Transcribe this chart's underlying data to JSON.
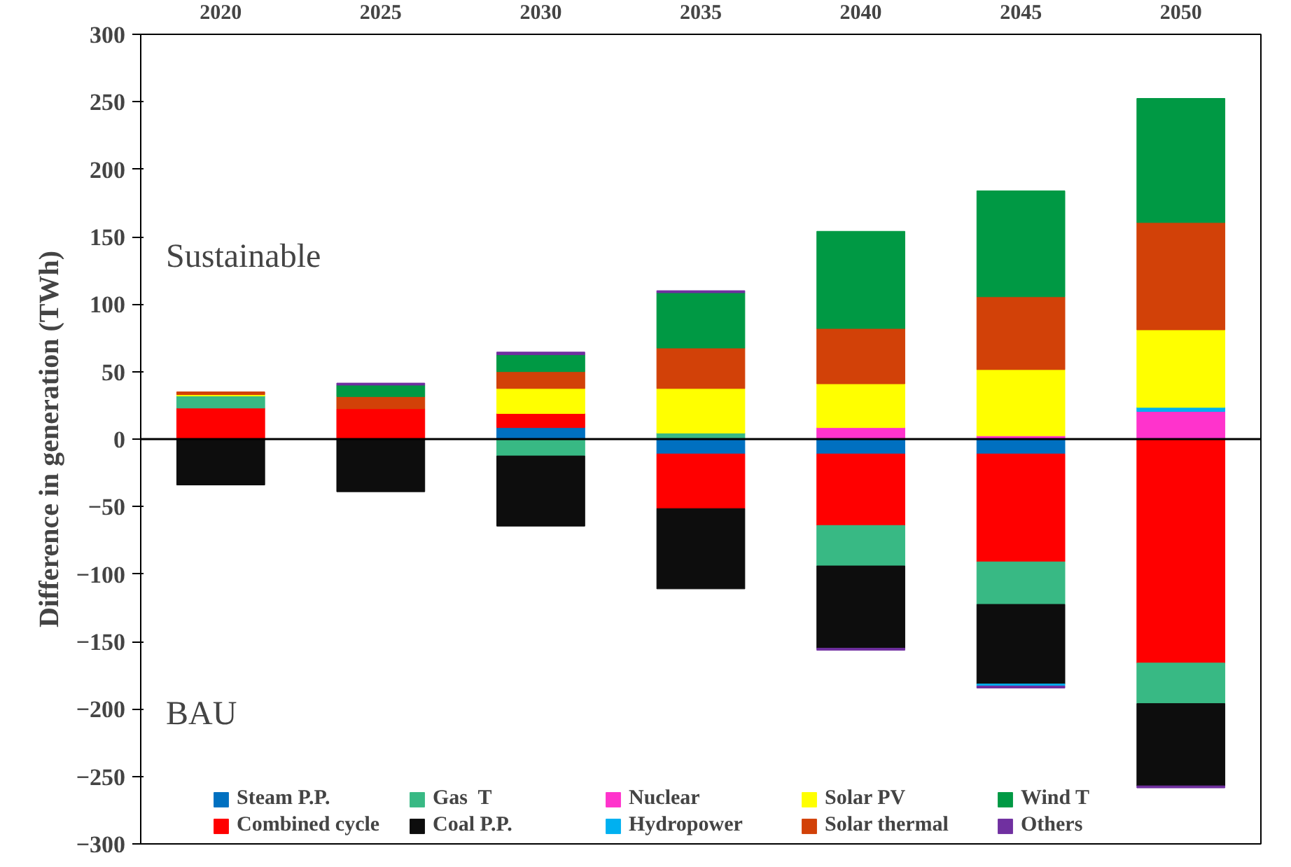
{
  "chart_data": {
    "type": "bar",
    "stacked": true,
    "categories": [
      "2020",
      "2025",
      "2030",
      "2035",
      "2040",
      "2045",
      "2050"
    ],
    "ylabel": "Difference in generation (TWh)",
    "annotations": [
      "Sustainable",
      "BAU"
    ],
    "ylim": [
      -300,
      300
    ],
    "yticks": [
      -300,
      -250,
      -200,
      -150,
      -100,
      -50,
      0,
      50,
      100,
      150,
      200,
      250,
      300
    ],
    "grid": false,
    "legend": "bottom",
    "ref_lines": [
      {
        "axis": "y",
        "value": 0,
        "color": "#000000"
      }
    ],
    "series": [
      {
        "name": "Steam P.P.",
        "color": "#0070c0",
        "values": [
          null,
          null,
          8.5,
          -11,
          -11,
          -11,
          null
        ]
      },
      {
        "name": "Combined cycle",
        "color": "#ff0000",
        "values": [
          23,
          22.5,
          10.5,
          -40.5,
          -53,
          -80,
          -166
        ]
      },
      {
        "name": "Gas  T",
        "color": "#38b984",
        "values": [
          9,
          null,
          -12.5,
          4.5,
          -30,
          -31.5,
          -30
        ]
      },
      {
        "name": "Coal P.P.",
        "color": "#0d0d0d",
        "values": [
          -34,
          -39,
          -52,
          -59.5,
          -61,
          -59,
          -61
        ]
      },
      {
        "name": "Nuclear",
        "color": "#ff33cc",
        "values": [
          null,
          null,
          null,
          null,
          8.5,
          2.5,
          20.5
        ]
      },
      {
        "name": "Hydropower",
        "color": "#00b0f0",
        "values": [
          null,
          null,
          null,
          null,
          null,
          -1.5,
          3
        ]
      },
      {
        "name": "Solar PV",
        "color": "#ffff00",
        "values": [
          1,
          null,
          18.5,
          33,
          32.5,
          49,
          57.5
        ]
      },
      {
        "name": "Solar thermal",
        "color": "#d24108",
        "values": [
          2,
          9,
          12.5,
          30,
          41,
          54,
          79.5
        ]
      },
      {
        "name": "Wind T",
        "color": "#009944",
        "values": [
          null,
          8.5,
          12.5,
          41,
          72,
          78.5,
          92
        ]
      },
      {
        "name": "Others",
        "color": "#7030a0",
        "values": [
          null,
          1.5,
          2,
          1.5,
          -1.5,
          -1.5,
          -1.5
        ]
      }
    ]
  }
}
